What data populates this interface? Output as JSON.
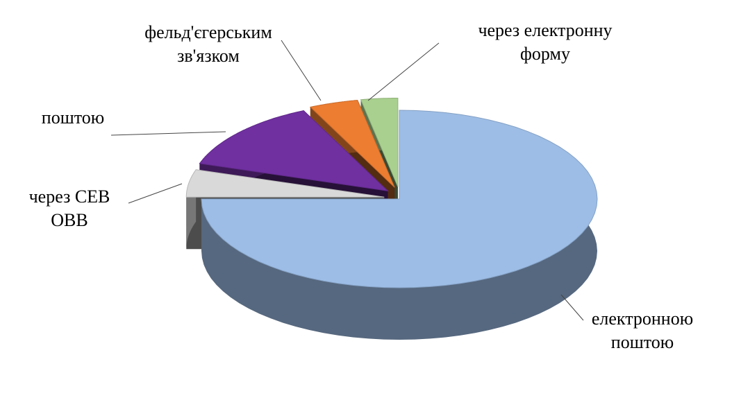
{
  "chart_data": {
    "type": "pie",
    "style": "3d-exploded",
    "categories": [
      "електронною\nпоштою",
      "через СЕВ\nОВВ",
      "поштою",
      "фельд'єгерським\nзв'язком",
      "через електронну\nформу"
    ],
    "values": [
      75,
      5,
      13,
      4,
      3
    ],
    "colors": [
      "#9dbde6",
      "#d9d9d9",
      "#7030a0",
      "#ed7d31",
      "#a9d08e"
    ]
  }
}
